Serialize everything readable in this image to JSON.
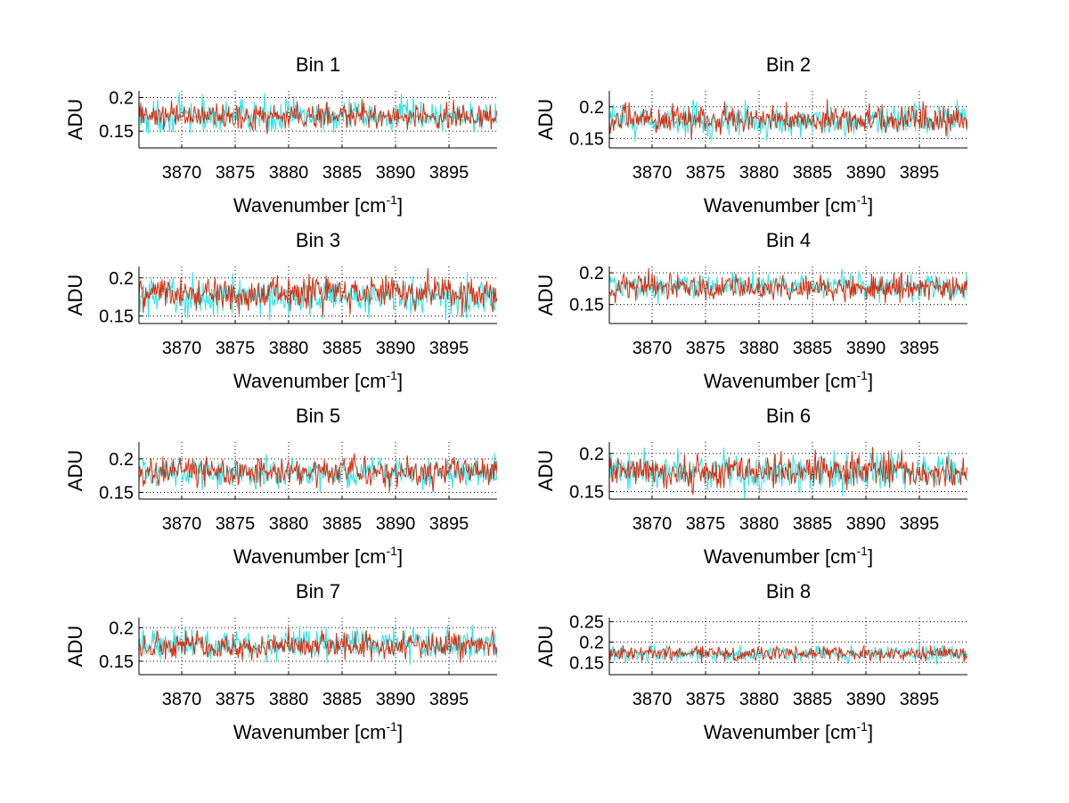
{
  "colors": {
    "series_1": "#22e5e8",
    "series_2": "#dd2a0c",
    "grid": "#000000"
  },
  "chart_data": [
    {
      "type": "line",
      "title": "Bin 1",
      "xlabel": "Wavenumber [cm",
      "xlabel_sup": "-1",
      "xlabel_end": "]",
      "ylabel": "ADU",
      "xlim": [
        3866,
        3899.5
      ],
      "ylim": [
        0.125,
        0.21
      ],
      "xticks": [
        3870,
        3875,
        3880,
        3885,
        3890,
        3895
      ],
      "yticks": [
        0.15,
        0.2
      ],
      "ytick_labels": [
        "0.15",
        "0.2"
      ],
      "grid": true,
      "series": [
        {
          "color": "#22e5e8",
          "mean": 0.172,
          "noise": 0.012
        },
        {
          "color": "#dd2a0c",
          "mean": 0.172,
          "noise": 0.01
        }
      ]
    },
    {
      "type": "line",
      "title": "Bin 2",
      "xlabel": "Wavenumber [cm",
      "xlabel_sup": "-1",
      "xlabel_end": "]",
      "ylabel": "ADU",
      "xlim": [
        3866,
        3899.5
      ],
      "ylim": [
        0.135,
        0.225
      ],
      "xticks": [
        3870,
        3875,
        3880,
        3885,
        3890,
        3895
      ],
      "yticks": [
        0.15,
        0.2
      ],
      "ytick_labels": [
        "0.15",
        "0.2"
      ],
      "grid": true,
      "series": [
        {
          "color": "#22e5e8",
          "mean": 0.178,
          "noise": 0.012
        },
        {
          "color": "#dd2a0c",
          "mean": 0.18,
          "noise": 0.011
        }
      ]
    },
    {
      "type": "line",
      "title": "Bin 3",
      "xlabel": "Wavenumber [cm",
      "xlabel_sup": "-1",
      "xlabel_end": "]",
      "ylabel": "ADU",
      "xlim": [
        3866,
        3899.5
      ],
      "ylim": [
        0.14,
        0.215
      ],
      "xticks": [
        3870,
        3875,
        3880,
        3885,
        3890,
        3895
      ],
      "yticks": [
        0.15,
        0.2
      ],
      "ytick_labels": [
        "0.15",
        "0.2"
      ],
      "grid": true,
      "series": [
        {
          "color": "#22e5e8",
          "mean": 0.175,
          "noise": 0.012
        },
        {
          "color": "#dd2a0c",
          "mean": 0.18,
          "noise": 0.011
        }
      ]
    },
    {
      "type": "line",
      "title": "Bin 4",
      "xlabel": "Wavenumber [cm",
      "xlabel_sup": "-1",
      "xlabel_end": "]",
      "ylabel": "ADU",
      "xlim": [
        3866,
        3899.5
      ],
      "ylim": [
        0.12,
        0.21
      ],
      "xticks": [
        3870,
        3875,
        3880,
        3885,
        3890,
        3895
      ],
      "yticks": [
        0.15,
        0.2
      ],
      "ytick_labels": [
        "0.15",
        "0.2"
      ],
      "grid": true,
      "series": [
        {
          "color": "#22e5e8",
          "mean": 0.178,
          "noise": 0.01
        },
        {
          "color": "#dd2a0c",
          "mean": 0.177,
          "noise": 0.01
        }
      ]
    },
    {
      "type": "line",
      "title": "Bin 5",
      "xlabel": "Wavenumber [cm",
      "xlabel_sup": "-1",
      "xlabel_end": "]",
      "ylabel": "ADU",
      "xlim": [
        3866,
        3899.5
      ],
      "ylim": [
        0.14,
        0.225
      ],
      "xticks": [
        3870,
        3875,
        3880,
        3885,
        3890,
        3895
      ],
      "yticks": [
        0.15,
        0.2
      ],
      "ytick_labels": [
        "0.15",
        "0.2"
      ],
      "grid": true,
      "series": [
        {
          "color": "#22e5e8",
          "mean": 0.18,
          "noise": 0.011
        },
        {
          "color": "#dd2a0c",
          "mean": 0.181,
          "noise": 0.011
        }
      ]
    },
    {
      "type": "line",
      "title": "Bin 6",
      "xlabel": "Wavenumber [cm",
      "xlabel_sup": "-1",
      "xlabel_end": "]",
      "ylabel": "ADU",
      "xlim": [
        3866,
        3899.5
      ],
      "ylim": [
        0.14,
        0.215
      ],
      "xticks": [
        3870,
        3875,
        3880,
        3885,
        3890,
        3895
      ],
      "yticks": [
        0.15,
        0.2
      ],
      "ytick_labels": [
        "0.15",
        "0.2"
      ],
      "grid": true,
      "series": [
        {
          "color": "#22e5e8",
          "mean": 0.176,
          "noise": 0.012
        },
        {
          "color": "#dd2a0c",
          "mean": 0.176,
          "noise": 0.011
        }
      ]
    },
    {
      "type": "line",
      "title": "Bin 7",
      "xlabel": "Wavenumber [cm",
      "xlabel_sup": "-1",
      "xlabel_end": "]",
      "ylabel": "ADU",
      "xlim": [
        3866,
        3899.5
      ],
      "ylim": [
        0.13,
        0.215
      ],
      "xticks": [
        3870,
        3875,
        3880,
        3885,
        3890,
        3895
      ],
      "yticks": [
        0.15,
        0.2
      ],
      "ytick_labels": [
        "0.15",
        "0.2"
      ],
      "grid": true,
      "series": [
        {
          "color": "#22e5e8",
          "mean": 0.175,
          "noise": 0.011
        },
        {
          "color": "#dd2a0c",
          "mean": 0.173,
          "noise": 0.01
        }
      ]
    },
    {
      "type": "line",
      "title": "Bin 8",
      "xlabel": "Wavenumber [cm",
      "xlabel_sup": "-1",
      "xlabel_end": "]",
      "ylabel": "ADU",
      "xlim": [
        3866,
        3899.5
      ],
      "ylim": [
        0.12,
        0.26
      ],
      "xticks": [
        3870,
        3875,
        3880,
        3885,
        3890,
        3895
      ],
      "yticks": [
        0.15,
        0.2,
        0.25
      ],
      "ytick_labels": [
        "0.15",
        "0.2",
        "0.25"
      ],
      "grid": true,
      "series": [
        {
          "color": "#22e5e8",
          "mean": 0.172,
          "noise": 0.01
        },
        {
          "color": "#dd2a0c",
          "mean": 0.172,
          "noise": 0.009
        }
      ]
    }
  ]
}
